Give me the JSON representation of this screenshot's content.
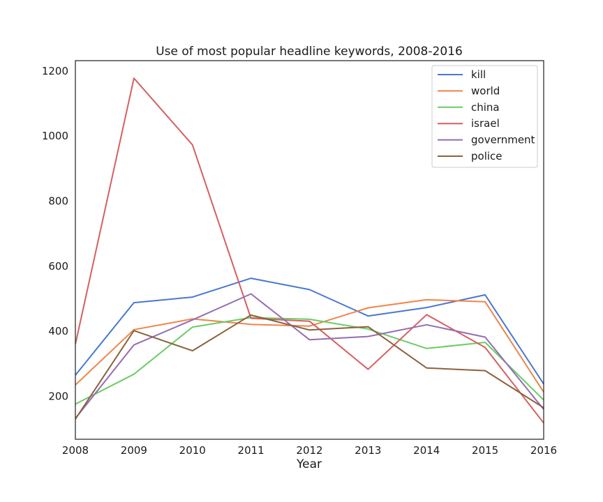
{
  "chart_data": {
    "type": "line",
    "title": "Use of most popular headline keywords, 2008-2016",
    "xlabel": "Year",
    "ylabel": "",
    "x": [
      2008,
      2009,
      2010,
      2011,
      2012,
      2013,
      2014,
      2015,
      2016
    ],
    "x_tick_labels": [
      "2008",
      "2009",
      "2010",
      "2011",
      "2012",
      "2013",
      "2014",
      "2015",
      "2016"
    ],
    "y_ticks": [
      200,
      400,
      600,
      800,
      1000,
      1200
    ],
    "y_tick_labels": [
      "200",
      "400",
      "600",
      "800",
      "1000",
      "1200"
    ],
    "xlim": [
      2008,
      2016
    ],
    "ylim": [
      68,
      1232
    ],
    "grid": false,
    "legend_position": "top-right",
    "series": [
      {
        "name": "kill",
        "color": "#4878cf",
        "values": [
          265,
          488,
          505,
          563,
          528,
          447,
          473,
          512,
          238
        ]
      },
      {
        "name": "world",
        "color": "#ee854a",
        "values": [
          235,
          405,
          438,
          421,
          416,
          472,
          497,
          491,
          213
        ]
      },
      {
        "name": "china",
        "color": "#6acc65",
        "values": [
          176,
          268,
          413,
          442,
          437,
          407,
          347,
          366,
          189
        ]
      },
      {
        "name": "israel",
        "color": "#d65f5f",
        "values": [
          360,
          1178,
          973,
          440,
          431,
          283,
          451,
          350,
          118
        ]
      },
      {
        "name": "government",
        "color": "#956cb4",
        "values": [
          132,
          358,
          435,
          515,
          374,
          384,
          420,
          382,
          160
        ]
      },
      {
        "name": "police",
        "color": "#8c613c",
        "values": [
          130,
          402,
          340,
          450,
          404,
          414,
          287,
          279,
          165
        ]
      }
    ]
  }
}
